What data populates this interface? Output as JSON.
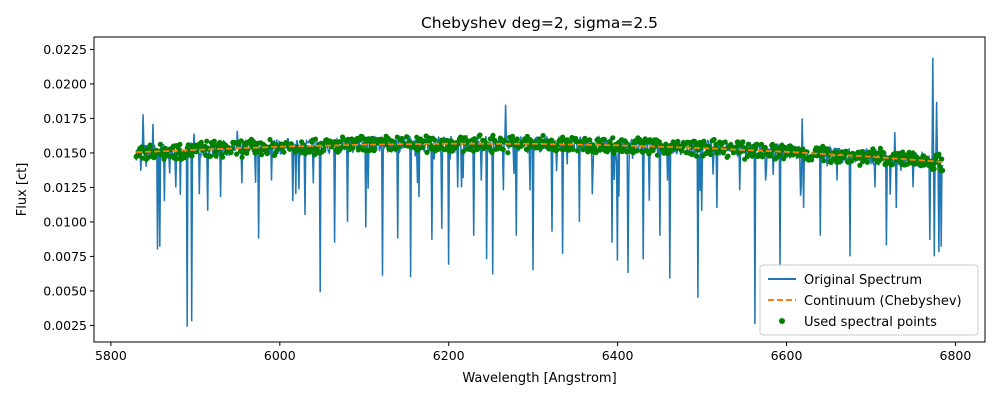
{
  "chart_data": {
    "type": "line",
    "title": "Chebyshev deg=2, sigma=2.5",
    "xlabel": "Wavelength [Angstrom]",
    "ylabel": "Flux [ct]",
    "xlim": [
      5780,
      6835
    ],
    "ylim": [
      0.0013,
      0.0234
    ],
    "x_ticks": [
      {
        "value": 5800,
        "label": "5800"
      },
      {
        "value": 6000,
        "label": "6000"
      },
      {
        "value": 6200,
        "label": "6200"
      },
      {
        "value": 6400,
        "label": "6400"
      },
      {
        "value": 6600,
        "label": "6600"
      },
      {
        "value": 6800,
        "label": "6800"
      }
    ],
    "y_ticks": [
      {
        "value": 0.0025,
        "label": "0.0025"
      },
      {
        "value": 0.005,
        "label": "0.0050"
      },
      {
        "value": 0.0075,
        "label": "0.0075"
      },
      {
        "value": 0.01,
        "label": "0.0100"
      },
      {
        "value": 0.0125,
        "label": "0.0125"
      },
      {
        "value": 0.015,
        "label": "0.0150"
      },
      {
        "value": 0.0175,
        "label": "0.0175"
      },
      {
        "value": 0.02,
        "label": "0.0200"
      },
      {
        "value": 0.0225,
        "label": "0.0225"
      }
    ],
    "legend_position": "lower-right",
    "series": [
      {
        "name": "Original Spectrum",
        "style": "line",
        "color": "#1f77b4",
        "x_range": [
          5830,
          6785
        ],
        "continuum_level": 0.0152,
        "absorption_lines": [
          [
            5835,
            0.0137
          ],
          [
            5842,
            0.014
          ],
          [
            5855,
            0.008
          ],
          [
            5858,
            0.0082
          ],
          [
            5863,
            0.0115
          ],
          [
            5870,
            0.0135
          ],
          [
            5890,
            0.0024
          ],
          [
            5896,
            0.0028
          ],
          [
            5905,
            0.012
          ],
          [
            5915,
            0.0108
          ],
          [
            5930,
            0.0118
          ],
          [
            5955,
            0.0128
          ],
          [
            5975,
            0.0088
          ],
          [
            5990,
            0.013
          ],
          [
            6015,
            0.0115
          ],
          [
            6030,
            0.0105
          ],
          [
            6040,
            0.0128
          ],
          [
            6048,
            0.0049
          ],
          [
            6065,
            0.0085
          ],
          [
            6080,
            0.01
          ],
          [
            6102,
            0.0096
          ],
          [
            6122,
            0.0061
          ],
          [
            6140,
            0.0088
          ],
          [
            6155,
            0.006
          ],
          [
            6165,
            0.0118
          ],
          [
            6180,
            0.0087
          ],
          [
            6192,
            0.0095
          ],
          [
            6200,
            0.0069
          ],
          [
            6215,
            0.0125
          ],
          [
            6230,
            0.009
          ],
          [
            6245,
            0.0073
          ],
          [
            6252,
            0.0062
          ],
          [
            6265,
            0.0123
          ],
          [
            6280,
            0.009
          ],
          [
            6300,
            0.0065
          ],
          [
            6322,
            0.0093
          ],
          [
            6335,
            0.0077
          ],
          [
            6355,
            0.01
          ],
          [
            6370,
            0.012
          ],
          [
            6393,
            0.0085
          ],
          [
            6400,
            0.0072
          ],
          [
            6412,
            0.0063
          ],
          [
            6430,
            0.0073
          ],
          [
            6450,
            0.009
          ],
          [
            6462,
            0.0059
          ],
          [
            6495,
            0.0045
          ],
          [
            6500,
            0.0108
          ],
          [
            6518,
            0.011
          ],
          [
            6545,
            0.0123
          ],
          [
            6563,
            0.0026
          ],
          [
            6575,
            0.013
          ],
          [
            6592,
            0.0067
          ],
          [
            6620,
            0.011
          ],
          [
            6640,
            0.009
          ],
          [
            6660,
            0.013
          ],
          [
            6675,
            0.0075
          ],
          [
            6705,
            0.0125
          ],
          [
            6718,
            0.0083
          ],
          [
            6730,
            0.011
          ],
          [
            6750,
            0.0125
          ],
          [
            6770,
            0.0087
          ],
          [
            6775,
            0.0075
          ],
          [
            6780,
            0.0078
          ],
          [
            6783,
            0.0082
          ]
        ],
        "emission_spikes": [
          [
            5838,
            0.0178
          ],
          [
            5850,
            0.0171
          ],
          [
            5898,
            0.0164
          ],
          [
            5950,
            0.0166
          ],
          [
            6267,
            0.0185
          ],
          [
            6618,
            0.0175
          ],
          [
            6773,
            0.0219
          ],
          [
            6778,
            0.0187
          ],
          [
            6728,
            0.0165
          ]
        ]
      },
      {
        "name": "Continuum (Chebyshev)",
        "style": "dashed",
        "color": "#ff7f0e",
        "x": [
          5830,
          5900,
          6000,
          6100,
          6200,
          6300,
          6400,
          6500,
          6600,
          6700,
          6785
        ],
        "values": [
          0.01505,
          0.01522,
          0.01545,
          0.0156,
          0.01567,
          0.01566,
          0.01555,
          0.01535,
          0.01508,
          0.01472,
          0.01435
        ]
      },
      {
        "name": "Used spectral points",
        "style": "scatter",
        "color": "#008000",
        "x_range": [
          5830,
          6785
        ],
        "band_half_width": 0.0007
      }
    ]
  }
}
